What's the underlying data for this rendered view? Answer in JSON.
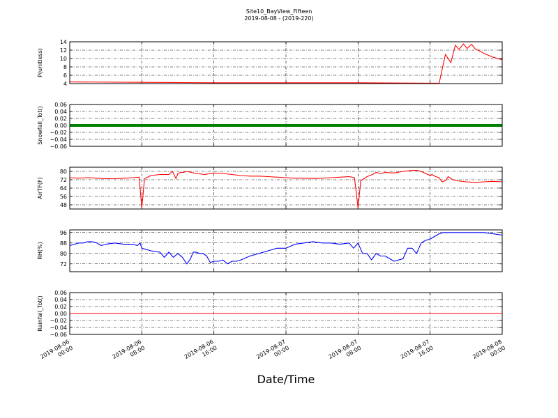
{
  "figure": {
    "title": "Site10_BayView_Fifteen",
    "subtitle": "2019-08-08 - (2019-220)",
    "xlabel": "Date/Time",
    "x_ticks": [
      "2019-08-06\n00:00",
      "2019-08-06\n08:00",
      "2019-08-06\n16:00",
      "2019-08-07\n00:00",
      "2019-08-07\n08:00",
      "2019-08-07\n16:00",
      "2019-08-08\n00:00"
    ]
  },
  "chart_data": [
    {
      "type": "line",
      "ylabel": "P(unitless)",
      "ylim": [
        4,
        14
      ],
      "yticks": [
        "4",
        "6",
        "8",
        "10",
        "12",
        "14"
      ],
      "color": "#ff0000",
      "grid": true,
      "xlim_hours": [
        0,
        48
      ],
      "x_hours": [
        0,
        8,
        16,
        24,
        32,
        40,
        41,
        41.7,
        42.3,
        42.8,
        43.2,
        43.7,
        44.1,
        44.6,
        45,
        45.5,
        46,
        47,
        48
      ],
      "values": [
        4.4,
        4.3,
        4.2,
        4.2,
        4.2,
        4.1,
        4.1,
        11,
        9,
        13.2,
        12.2,
        13.5,
        12.4,
        13.4,
        12.3,
        11.8,
        11.2,
        10.3,
        9.7
      ]
    },
    {
      "type": "line",
      "ylabel": "Snowfall_Tot()",
      "ylim": [
        -0.06,
        0.06
      ],
      "yticks": [
        "−0.06",
        "−0.04",
        "−0.02",
        "0.00",
        "0.02",
        "0.04",
        "0.06"
      ],
      "color": "#008000",
      "grid": true,
      "xlim_hours": [
        0,
        48
      ],
      "x_hours": [
        0,
        48
      ],
      "values": [
        0,
        0
      ]
    },
    {
      "type": "line",
      "ylabel": "AirTF(F)",
      "ylim": [
        44,
        84
      ],
      "yticks": [
        "48",
        "56",
        "64",
        "72",
        "80"
      ],
      "color": "#ff0000",
      "grid": true,
      "xlim_hours": [
        0,
        48
      ],
      "x_hours": [
        0,
        1,
        2,
        3,
        4,
        5,
        6,
        7,
        7.7,
        8,
        8.3,
        9,
        10,
        11,
        11.4,
        11.8,
        12,
        12.3,
        12.6,
        13,
        14,
        15,
        16,
        17,
        18,
        19,
        20,
        21,
        22,
        23,
        24,
        25,
        26,
        27,
        28,
        29,
        30,
        31,
        31.6,
        32,
        32.3,
        33,
        33.6,
        34,
        34.5,
        35,
        36,
        37,
        38,
        38.6,
        39,
        40,
        40.2,
        40.6,
        41,
        41.3,
        41.7,
        42,
        42.5,
        43,
        44,
        45,
        46,
        47,
        48
      ],
      "values": [
        74,
        73.5,
        74,
        73.5,
        73,
        73,
        73.5,
        74,
        74.5,
        45,
        73,
        76,
        77,
        77,
        80,
        73,
        78,
        79,
        79,
        80,
        78,
        77,
        78.5,
        78,
        77,
        76,
        75.5,
        75.5,
        75,
        74.5,
        74,
        73.5,
        73.5,
        73.2,
        73.5,
        74,
        74.5,
        75,
        74,
        45,
        71,
        75,
        77,
        79,
        78,
        79,
        78.5,
        80,
        81,
        81,
        80,
        76,
        77,
        75,
        74,
        70,
        71,
        75,
        72,
        71,
        70,
        69.5,
        70,
        70.5,
        70
      ]
    },
    {
      "type": "line",
      "ylabel": "RH(%)",
      "ylim": [
        66,
        98
      ],
      "yticks": [
        "72",
        "80",
        "88",
        "96"
      ],
      "color": "#0000ff",
      "grid": true,
      "xlim_hours": [
        0,
        48
      ],
      "x_hours": [
        0,
        0.5,
        1,
        1.5,
        2,
        2.5,
        3,
        3.5,
        4,
        5,
        6,
        7,
        7.5,
        7.8,
        8,
        9,
        10,
        10.5,
        11,
        11.5,
        12,
        12.5,
        13,
        13.4,
        13.7,
        14,
        14.4,
        14.8,
        15.2,
        15.6,
        16,
        16.5,
        17,
        17.5,
        18,
        18.5,
        19,
        20,
        21,
        22,
        23,
        24,
        25,
        26,
        27,
        28,
        29,
        30,
        31,
        31.5,
        32,
        32.5,
        33,
        33.5,
        34,
        34.5,
        35,
        36,
        37,
        37.5,
        38,
        38.5,
        39,
        39.5,
        40,
        40.5,
        41,
        41.5,
        42,
        42.5,
        43,
        43.5,
        44,
        45,
        46,
        47,
        48
      ],
      "values": [
        86,
        87,
        88,
        88,
        89,
        89,
        88,
        86,
        87,
        88,
        87,
        87,
        86,
        88,
        84,
        82,
        81,
        77,
        81,
        77,
        80,
        77,
        72,
        76,
        81,
        81,
        80,
        80,
        78,
        73,
        74,
        74,
        75,
        72,
        74,
        74,
        75,
        78,
        80,
        82,
        84,
        84,
        87,
        88,
        89,
        88,
        88,
        87,
        88,
        84,
        88,
        80,
        80,
        75,
        80,
        78,
        78,
        74,
        76,
        84,
        84,
        80,
        88,
        90,
        91,
        93,
        95,
        96,
        96,
        96,
        96,
        96,
        96,
        96,
        96,
        95,
        94
      ]
    },
    {
      "type": "line",
      "ylabel": "Rainfall_Tot()",
      "ylim": [
        -0.06,
        0.06
      ],
      "yticks": [
        "−0.06",
        "−0.04",
        "−0.02",
        "0.00",
        "0.02",
        "0.04",
        "0.06"
      ],
      "color": "#ff0000",
      "grid": true,
      "xlim_hours": [
        0,
        48
      ],
      "x_hours": [
        0,
        48
      ],
      "values": [
        0,
        0
      ]
    }
  ]
}
